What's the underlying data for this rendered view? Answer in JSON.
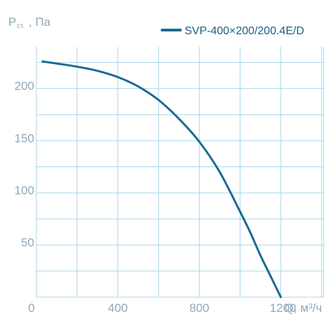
{
  "chart_data": {
    "type": "line",
    "ylabel_main": "P",
    "ylabel_sub": "ст.",
    "ylabel_unit": ", Па",
    "xlabel": "Q, м³/ч",
    "xlim": [
      0,
      1410
    ],
    "ylim": [
      0,
      240
    ],
    "x_ticks": [
      0,
      400,
      800,
      1200
    ],
    "y_ticks": [
      50,
      100,
      150,
      200
    ],
    "grid": true,
    "legend_position": "top-right",
    "series": [
      {
        "name": "SVP-400×200/200.4E/D",
        "color": "#1b6a94",
        "x": [
          30,
          100,
          200,
          300,
          400,
          500,
          600,
          700,
          800,
          900,
          1000,
          1050,
          1100,
          1150,
          1200
        ],
        "y": [
          226,
          224,
          221,
          217,
          211,
          202,
          189,
          171,
          149,
          120,
          82,
          62,
          40,
          20,
          0
        ]
      }
    ]
  }
}
